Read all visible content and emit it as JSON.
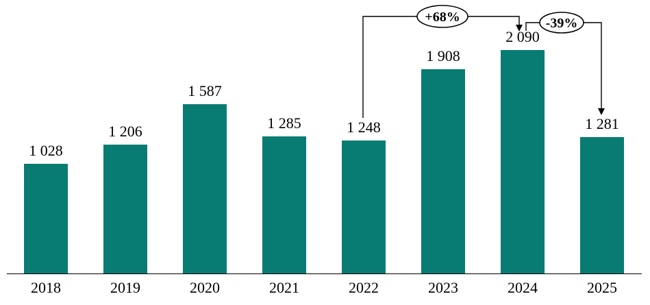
{
  "chart_data": {
    "type": "bar",
    "title": "",
    "xlabel": "",
    "ylabel": "",
    "categories": [
      "2018",
      "2019",
      "2020",
      "2021",
      "2022",
      "2023",
      "2024",
      "2025"
    ],
    "values": [
      1028,
      1206,
      1587,
      1285,
      1248,
      1908,
      2090,
      1281
    ],
    "value_labels": [
      "1 028",
      "1 206",
      "1 587",
      "1 285",
      "1 248",
      "1 908",
      "2 090",
      "1 281"
    ],
    "ylim": [
      0,
      2300
    ],
    "grid": false,
    "legend_position": "none",
    "bar_color": "#087c72",
    "label_color": "#000000",
    "axis_line_color": "#000000",
    "annotations": [
      {
        "label": "+68%",
        "from_category": "2022",
        "to_category": "2024",
        "shape": "ellipse-callout"
      },
      {
        "label": "-39%",
        "from_category": "2024",
        "to_category": "2025",
        "shape": "ellipse-callout"
      }
    ]
  }
}
